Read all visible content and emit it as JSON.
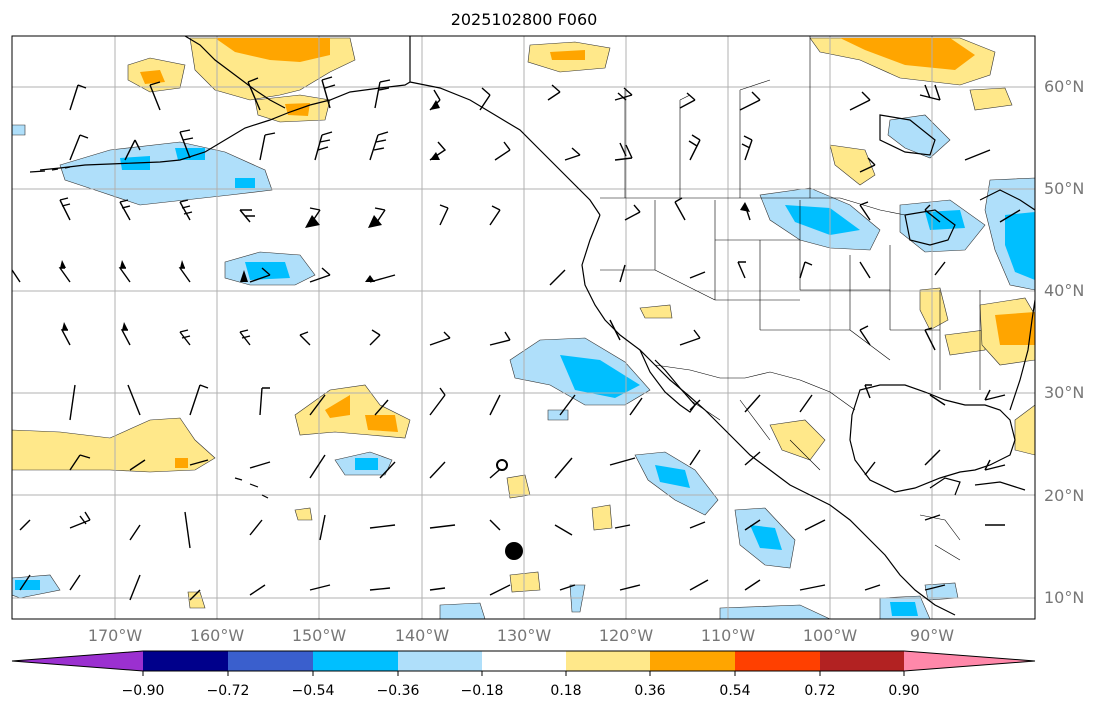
{
  "title": "2025102800 F060",
  "lat_labels": [
    "60°N",
    "50°N",
    "40°N",
    "30°N",
    "20°N",
    "10°N"
  ],
  "lon_labels": [
    "170°W",
    "160°W",
    "150°W",
    "140°W",
    "130°W",
    "120°W",
    "110°W",
    "100°W",
    "90°W"
  ],
  "colorbar": {
    "tick_labels": [
      "−0.90",
      "−0.72",
      "−0.54",
      "−0.36",
      "−0.18",
      "0.18",
      "0.36",
      "0.54",
      "0.72",
      "0.90"
    ],
    "colors": [
      "#9b30d0",
      "#00008b",
      "#3a5fcd",
      "#00bfff",
      "#afdffa",
      "#ffffff",
      "#ffe88a",
      "#ffa500",
      "#ff4000",
      "#b22222",
      "#ff88aa"
    ]
  },
  "markers": {
    "open_circle": {
      "lon": -131,
      "lat": 23
    },
    "filled_circle": {
      "lon": -130,
      "lat": 14.5
    }
  }
}
